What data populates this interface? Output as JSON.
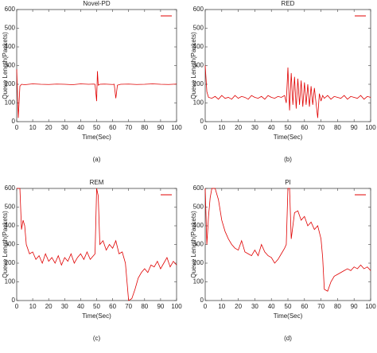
{
  "chart_data": [
    {
      "type": "line",
      "title": "Novel-PD",
      "xlabel": "Time(Sec)",
      "ylabel": "Queue Length(Packets)",
      "caption": "(a)",
      "xlim": [
        0,
        100
      ],
      "ylim": [
        0,
        600
      ],
      "xticks": [
        0,
        10,
        20,
        30,
        40,
        50,
        60,
        70,
        80,
        90,
        100
      ],
      "yticks": [
        0,
        100,
        200,
        300,
        400,
        500,
        600
      ],
      "grid": false,
      "legend": "upper right",
      "series": [
        {
          "color": "#e00000",
          "x": [
            0,
            1,
            2,
            3,
            5,
            10,
            15,
            20,
            25,
            30,
            35,
            40,
            45,
            48,
            49,
            50,
            50.5,
            51,
            52,
            55,
            60,
            61,
            62,
            63,
            65,
            70,
            75,
            80,
            85,
            90,
            95,
            100
          ],
          "values": [
            280,
            20,
            190,
            200,
            198,
            202,
            200,
            199,
            201,
            200,
            198,
            202,
            200,
            201,
            200,
            110,
            270,
            195,
            200,
            201,
            199,
            200,
            125,
            195,
            200,
            201,
            199,
            200,
            202,
            200,
            199,
            201
          ]
        }
      ]
    },
    {
      "type": "line",
      "title": "RED",
      "xlabel": "Time(Sec)",
      "ylabel": "Queue Length(Packets)",
      "caption": "(b)",
      "xlim": [
        0,
        100
      ],
      "ylim": [
        0,
        600
      ],
      "xticks": [
        0,
        10,
        20,
        30,
        40,
        50,
        60,
        70,
        80,
        90,
        100
      ],
      "yticks": [
        0,
        100,
        200,
        300,
        400,
        500,
        600
      ],
      "grid": false,
      "legend": "upper right",
      "series": [
        {
          "color": "#e00000",
          "x": [
            0,
            1,
            2,
            4,
            6,
            8,
            10,
            12,
            14,
            16,
            18,
            20,
            22,
            24,
            26,
            28,
            30,
            32,
            34,
            36,
            38,
            40,
            42,
            44,
            46,
            48,
            49,
            50,
            51,
            52,
            53,
            54,
            55,
            56,
            57,
            58,
            59,
            60,
            61,
            62,
            63,
            64,
            65,
            66,
            67,
            68,
            69,
            70,
            71,
            72,
            74,
            76,
            78,
            80,
            82,
            84,
            86,
            88,
            90,
            92,
            94,
            96,
            98,
            100
          ],
          "values": [
            300,
            160,
            130,
            125,
            135,
            120,
            140,
            125,
            130,
            120,
            140,
            125,
            135,
            130,
            120,
            140,
            130,
            125,
            135,
            120,
            140,
            130,
            125,
            135,
            130,
            140,
            100,
            290,
            60,
            260,
            90,
            240,
            70,
            230,
            90,
            220,
            80,
            210,
            90,
            200,
            80,
            190,
            90,
            180,
            100,
            20,
            150,
            110,
            140,
            125,
            140,
            120,
            135,
            130,
            125,
            140,
            120,
            135,
            130,
            125,
            140,
            120,
            135,
            130
          ]
        }
      ]
    },
    {
      "type": "line",
      "title": "REM",
      "xlabel": "Time(Sec)",
      "ylabel": "Queue Length(Packets)",
      "caption": "(c)",
      "xlim": [
        0,
        100
      ],
      "ylim": [
        0,
        600
      ],
      "xticks": [
        0,
        10,
        20,
        30,
        40,
        50,
        60,
        70,
        80,
        90,
        100
      ],
      "yticks": [
        0,
        100,
        200,
        300,
        400,
        500,
        600
      ],
      "grid": false,
      "legend": "upper right",
      "series": [
        {
          "color": "#e00000",
          "x": [
            0,
            2,
            3,
            4,
            5,
            6,
            8,
            10,
            12,
            14,
            16,
            18,
            20,
            22,
            24,
            26,
            28,
            30,
            32,
            34,
            36,
            38,
            40,
            42,
            44,
            46,
            48,
            49,
            50,
            51,
            52,
            54,
            56,
            58,
            60,
            62,
            64,
            66,
            68,
            69,
            70,
            72,
            74,
            76,
            78,
            80,
            82,
            84,
            86,
            88,
            90,
            92,
            94,
            96,
            98,
            100
          ],
          "values": [
            600,
            600,
            380,
            430,
            400,
            300,
            250,
            260,
            220,
            240,
            200,
            250,
            210,
            230,
            200,
            240,
            190,
            230,
            210,
            250,
            200,
            230,
            250,
            220,
            260,
            220,
            240,
            250,
            600,
            560,
            300,
            320,
            270,
            300,
            280,
            320,
            250,
            260,
            200,
            100,
            0,
            10,
            60,
            120,
            150,
            170,
            150,
            190,
            180,
            210,
            170,
            200,
            230,
            180,
            210,
            190
          ]
        }
      ]
    },
    {
      "type": "line",
      "title": "PI",
      "xlabel": "Time(Sec)",
      "ylabel": "Queue Length(Packets)",
      "caption": "(d)",
      "xlim": [
        0,
        100
      ],
      "ylim": [
        0,
        600
      ],
      "xticks": [
        0,
        10,
        20,
        30,
        40,
        50,
        60,
        70,
        80,
        90,
        100
      ],
      "yticks": [
        0,
        100,
        200,
        300,
        400,
        500,
        600
      ],
      "grid": false,
      "legend": "upper right",
      "series": [
        {
          "color": "#e00000",
          "x": [
            0,
            1,
            2,
            3,
            4,
            6,
            8,
            10,
            12,
            14,
            16,
            18,
            20,
            22,
            24,
            26,
            28,
            30,
            32,
            34,
            36,
            38,
            40,
            42,
            44,
            46,
            48,
            49,
            50,
            51,
            52,
            54,
            56,
            58,
            60,
            62,
            64,
            66,
            68,
            70,
            71,
            72,
            74,
            76,
            78,
            80,
            82,
            84,
            86,
            88,
            90,
            92,
            94,
            96,
            98,
            100
          ],
          "values": [
            600,
            300,
            450,
            550,
            600,
            600,
            540,
            430,
            370,
            330,
            300,
            280,
            270,
            320,
            260,
            250,
            240,
            270,
            240,
            300,
            260,
            240,
            230,
            200,
            220,
            250,
            280,
            300,
            600,
            600,
            330,
            470,
            480,
            430,
            450,
            400,
            420,
            380,
            400,
            330,
            230,
            60,
            50,
            100,
            130,
            140,
            150,
            160,
            170,
            160,
            180,
            170,
            190,
            170,
            180,
            160
          ]
        }
      ]
    }
  ]
}
